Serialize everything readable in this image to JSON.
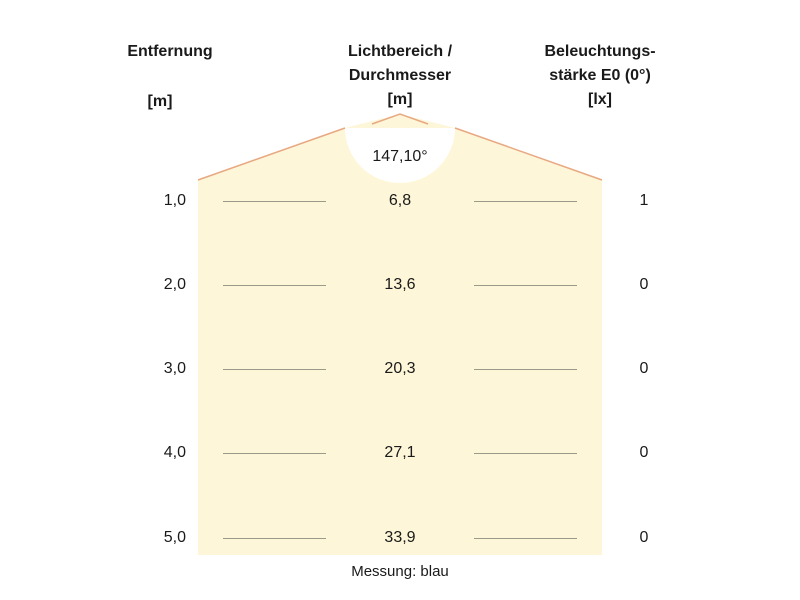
{
  "headers": {
    "distance": "Entfernung",
    "distance_unit": "[m]",
    "diameter_line1": "Lichtbereich /",
    "diameter_line2": "Durchmesser",
    "diameter_unit": "[m]",
    "illuminance_line1": "Beleuchtungs-",
    "illuminance_line2": "stärke E0 (0°)",
    "illuminance_unit": "[lx]"
  },
  "beam_angle": "147,10°",
  "rows": [
    {
      "distance": "1,0",
      "diameter": "6,8",
      "illuminance": "1"
    },
    {
      "distance": "2,0",
      "diameter": "13,6",
      "illuminance": "0"
    },
    {
      "distance": "3,0",
      "diameter": "20,3",
      "illuminance": "0"
    },
    {
      "distance": "4,0",
      "diameter": "27,1",
      "illuminance": "0"
    },
    {
      "distance": "5,0",
      "diameter": "33,9",
      "illuminance": "0"
    }
  ],
  "note": "Messung: blau",
  "colors": {
    "beam_fill": "#fdf6d8",
    "beam_edge": "#e8a882"
  }
}
